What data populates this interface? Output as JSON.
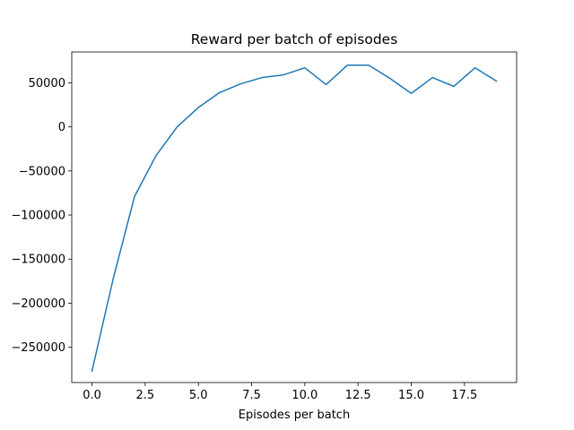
{
  "chart_data": {
    "type": "line",
    "title": "Reward per batch of episodes",
    "xlabel": "Episodes per batch",
    "ylabel": "",
    "xlim": [
      -0.95,
      19.95
    ],
    "ylim": [
      -290000,
      85000
    ],
    "xticks": [
      0.0,
      2.5,
      5.0,
      7.5,
      10.0,
      12.5,
      15.0,
      17.5
    ],
    "xtick_labels": [
      "0.0",
      "2.5",
      "5.0",
      "7.5",
      "10.0",
      "12.5",
      "15.0",
      "17.5"
    ],
    "yticks": [
      50000,
      0,
      -50000,
      -100000,
      -150000,
      -200000,
      -250000
    ],
    "ytick_labels": [
      "50000",
      "0",
      "−50000",
      "−100000",
      "−150000",
      "−200000",
      "−250000"
    ],
    "grid": false,
    "legend": "none",
    "series": [
      {
        "color": "#1f77b4",
        "x": [
          0,
          1,
          2,
          3,
          4,
          5,
          6,
          7,
          8,
          9,
          10,
          11,
          12,
          13,
          14,
          15,
          16,
          17,
          18,
          19
        ],
        "y": [
          -277000,
          -172000,
          -79000,
          -33000,
          0,
          22000,
          39000,
          49000,
          56000,
          59000,
          67000,
          48000,
          70000,
          70000,
          55000,
          38000,
          56000,
          46000,
          67000,
          52000
        ]
      }
    ]
  }
}
